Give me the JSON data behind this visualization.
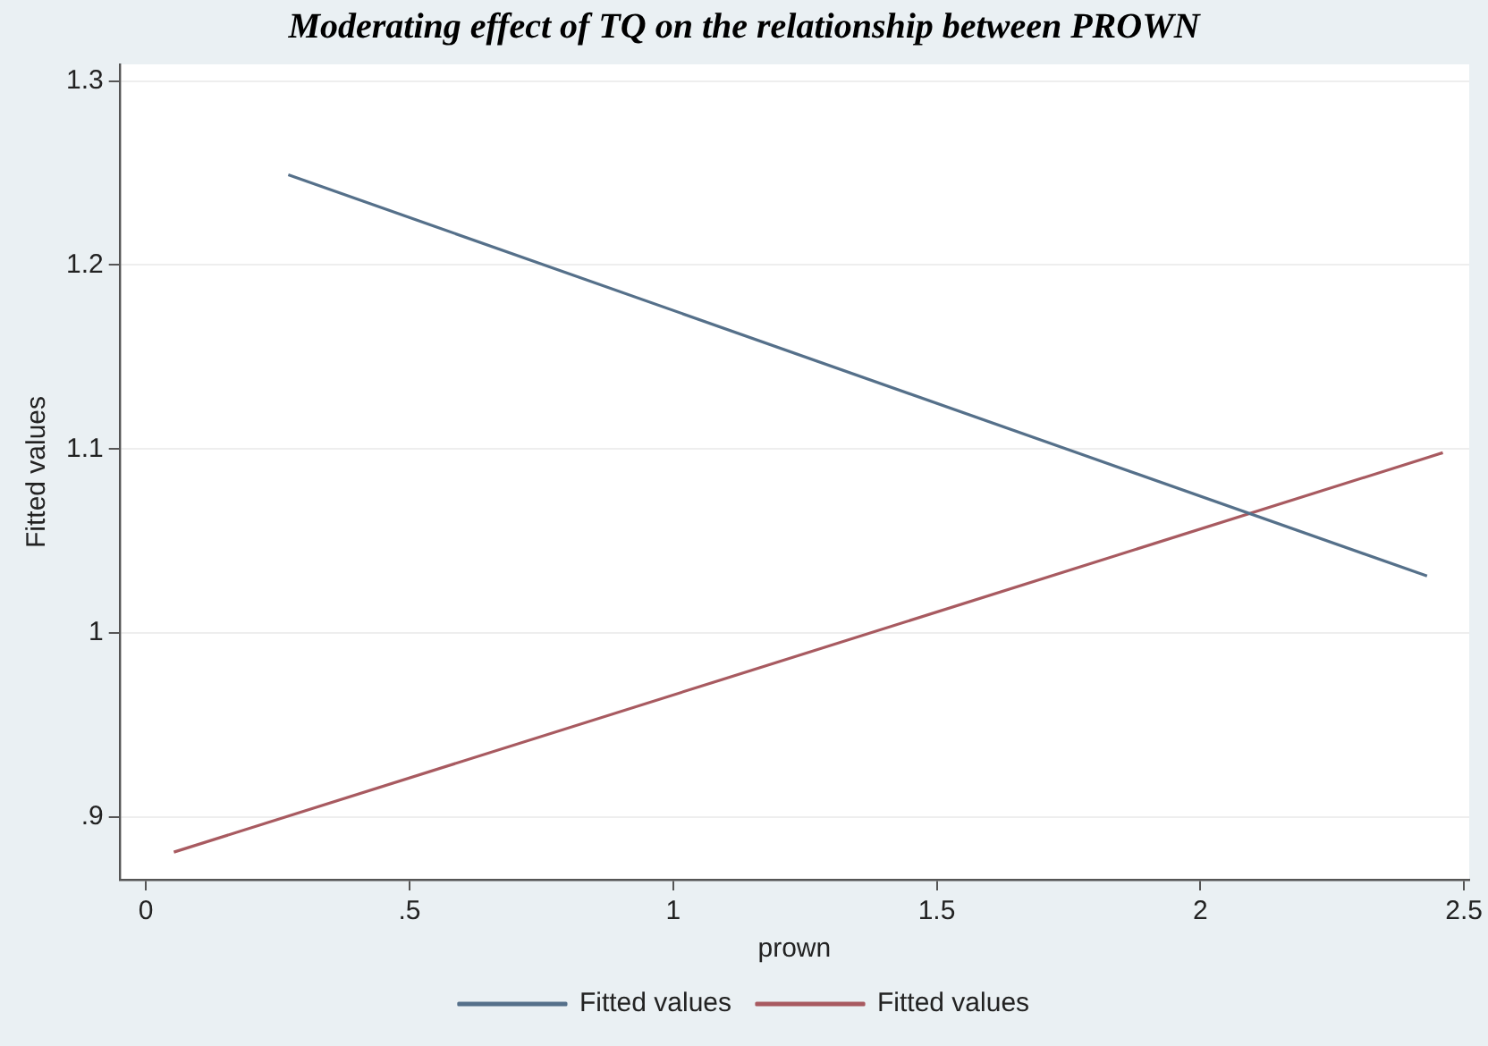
{
  "chart_data": {
    "type": "line",
    "title": "Moderating effect of TQ on the relationship between PROWN",
    "xlabel": "prown",
    "ylabel": "Fitted values",
    "series": [
      {
        "name": "Fitted values",
        "color": "#55708a",
        "x": [
          0.27,
          2.43
        ],
        "values": [
          1.249,
          1.031
        ]
      },
      {
        "name": "Fitted values",
        "color": "#a85a60",
        "x": [
          0.053,
          2.46
        ],
        "values": [
          0.881,
          1.098
        ]
      }
    ],
    "xlim": [
      -0.05,
      2.51
    ],
    "xticks": [
      0,
      {
        "value": 0.5,
        "label": ".5"
      },
      1,
      1.5,
      2,
      2.5
    ],
    "ylim": [
      0.866,
      1.309
    ],
    "yticks": [
      {
        "value": 0.9,
        "label": ".9"
      },
      1,
      1.1,
      1.2,
      1.3
    ],
    "grid": "y",
    "legend": "bottom",
    "marker": "none",
    "line_style": "solid"
  }
}
